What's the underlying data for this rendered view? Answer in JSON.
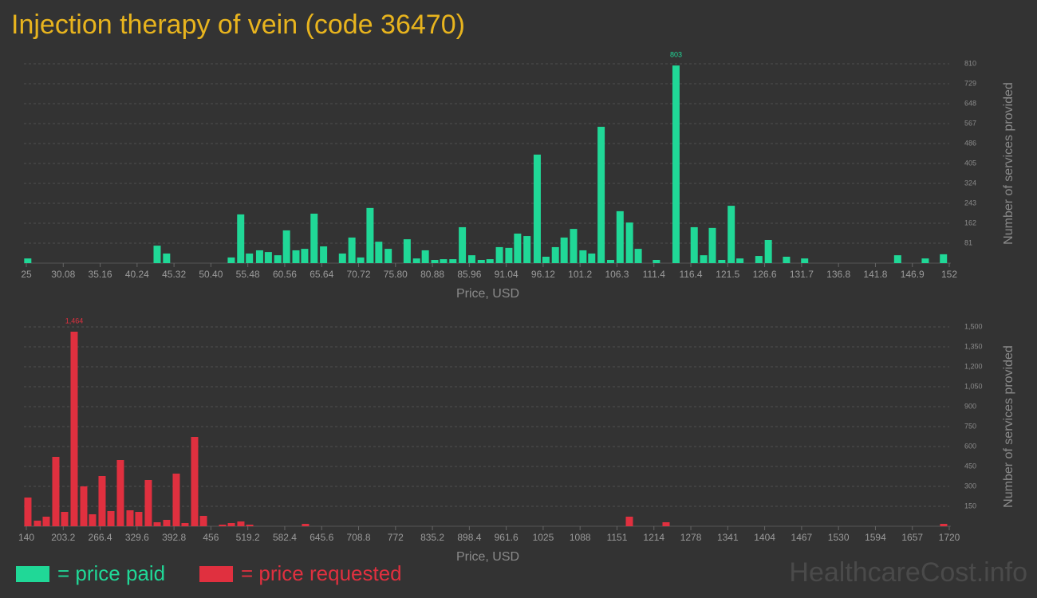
{
  "title": "Injection therapy of vein (code 36470)",
  "watermark": "HealthcareCost.info",
  "legend": [
    {
      "label": "= price paid",
      "color": "#20d897"
    },
    {
      "label": "= price requested",
      "color": "#e0303f"
    }
  ],
  "chart_data": [
    {
      "type": "bar",
      "x_label": "Price, USD",
      "y_label": "Number of services provided",
      "color": "#20d897",
      "grid": true,
      "x": [
        25.2,
        43.0,
        44.3,
        53.2,
        54.5,
        55.7,
        57.1,
        58.3,
        59.6,
        60.8,
        62.1,
        63.3,
        64.6,
        65.9,
        68.5,
        69.8,
        71.0,
        72.3,
        73.5,
        74.8,
        77.4,
        78.7,
        79.9,
        81.2,
        82.4,
        83.7,
        85.0,
        86.3,
        87.6,
        88.8,
        90.1,
        91.4,
        92.6,
        93.9,
        95.3,
        96.5,
        97.8,
        99.0,
        100.3,
        101.6,
        102.8,
        104.1,
        105.4,
        106.7,
        108.0,
        109.2,
        111.7,
        114.4,
        116.9,
        118.2,
        119.4,
        120.7,
        122.0,
        123.2,
        125.8,
        127.1,
        129.6,
        132.1,
        144.9,
        148.7,
        151.2
      ],
      "values": [
        19,
        71,
        39,
        23,
        198,
        39,
        52,
        45,
        32,
        133,
        52,
        58,
        201,
        68,
        39,
        104,
        23,
        224,
        87,
        58,
        97,
        19,
        52,
        13,
        16,
        16,
        146,
        32,
        13,
        16,
        65,
        62,
        120,
        110,
        441,
        26,
        65,
        104,
        139,
        52,
        39,
        554,
        13,
        211,
        165,
        58,
        13,
        803,
        146,
        32,
        143,
        13,
        233,
        19,
        29,
        94,
        26,
        19,
        32,
        19,
        36
      ],
      "value_labels": [
        null,
        null,
        null,
        null,
        null,
        null,
        null,
        null,
        null,
        null,
        null,
        null,
        null,
        null,
        null,
        null,
        null,
        null,
        null,
        null,
        null,
        null,
        null,
        null,
        null,
        null,
        null,
        null,
        null,
        null,
        null,
        null,
        null,
        null,
        null,
        null,
        null,
        null,
        null,
        null,
        null,
        null,
        null,
        null,
        null,
        null,
        null,
        "803",
        null,
        null,
        null,
        null,
        null,
        null,
        null,
        null,
        null,
        null,
        null,
        null,
        null
      ],
      "xlim": [
        25,
        152
      ],
      "xticks": [
        25,
        30.08,
        35.16,
        40.24,
        45.32,
        {
          "value": 50.4,
          "label": "50.40"
        },
        55.48,
        60.56,
        65.64,
        70.72,
        {
          "value": 75.8,
          "label": "75.80"
        },
        80.88,
        85.96,
        91.04,
        96.12,
        101.2,
        {
          "value": 106.28,
          "label": "106.3"
        },
        {
          "value": 111.36,
          "label": "111.4"
        },
        {
          "value": 116.44,
          "label": "116.4"
        },
        {
          "value": 121.52,
          "label": "121.5"
        },
        126.6,
        {
          "value": 131.68,
          "label": "131.7"
        },
        {
          "value": 136.76,
          "label": "136.8"
        },
        {
          "value": 141.84,
          "label": "141.8"
        },
        {
          "value": 146.92,
          "label": "146.9"
        },
        152
      ],
      "ylim": [
        0,
        810
      ],
      "yticks": [
        81,
        162,
        243,
        324,
        405,
        486,
        567,
        648,
        729,
        810
      ]
    },
    {
      "type": "bar",
      "x_label": "Price, USD",
      "y_label": "Number of services provided",
      "color": "#e0303f",
      "grid": true,
      "x": [
        142.7,
        159.1,
        174.1,
        190.5,
        205.5,
        221.9,
        238.3,
        253.3,
        269.7,
        284.8,
        301.1,
        317.5,
        332.5,
        348.9,
        364.0,
        380.3,
        396.7,
        411.7,
        428.1,
        443.2,
        475.9,
        491.0,
        507.3,
        522.4,
        617.9,
        1172.4,
        1235.2,
        1710.4
      ],
      "values": [
        216,
        42,
        72,
        522,
        108,
        1464,
        300,
        90,
        378,
        114,
        498,
        120,
        108,
        348,
        30,
        48,
        396,
        24,
        672,
        78,
        12,
        24,
        36,
        12,
        18,
        72,
        30,
        18
      ],
      "value_labels": [
        null,
        null,
        null,
        null,
        null,
        "1,464",
        null,
        null,
        null,
        null,
        null,
        null,
        null,
        null,
        null,
        null,
        null,
        null,
        null,
        null,
        null,
        null,
        null,
        null,
        null,
        null,
        null,
        null
      ],
      "xlim": [
        140,
        1720
      ],
      "xticks": [
        140,
        203.2,
        266.4,
        329.6,
        392.8,
        456,
        519.2,
        582.4,
        645.6,
        708.8,
        772,
        835.2,
        898.4,
        961.6,
        {
          "value": 1024.8,
          "label": "1025"
        },
        1088,
        {
          "value": 1151.2,
          "label": "1151"
        },
        {
          "value": 1214.4,
          "label": "1214"
        },
        {
          "value": 1277.6,
          "label": "1278"
        },
        {
          "value": 1340.8,
          "label": "1341"
        },
        1404,
        {
          "value": 1467.2,
          "label": "1467"
        },
        {
          "value": 1530.4,
          "label": "1530"
        },
        {
          "value": 1593.6,
          "label": "1594"
        },
        {
          "value": 1656.8,
          "label": "1657"
        },
        1720
      ],
      "ylim": [
        0,
        1500
      ],
      "yticks": [
        150,
        300,
        450,
        600,
        750,
        900,
        {
          "value": 1050,
          "label": "1,050"
        },
        {
          "value": 1200,
          "label": "1,200"
        },
        {
          "value": 1350,
          "label": "1,350"
        },
        {
          "value": 1500,
          "label": "1,500"
        }
      ]
    }
  ]
}
